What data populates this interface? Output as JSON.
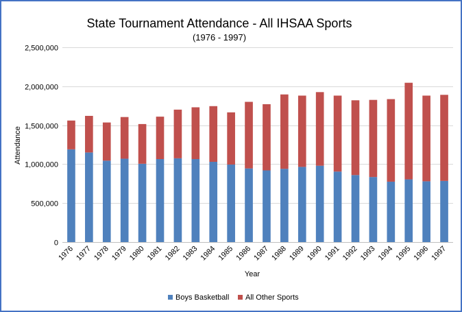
{
  "chart_data": {
    "type": "bar",
    "stacked": true,
    "title": "State Tournament Attendance - All IHSAA Sports",
    "subtitle": "(1976 - 1997)",
    "xlabel": "Year",
    "ylabel": "Attendance",
    "ylim": [
      0,
      2500000
    ],
    "yticks": [
      0,
      500000,
      1000000,
      1500000,
      2000000,
      2500000
    ],
    "ytick_labels": [
      "0",
      "500,000",
      "1,000,000",
      "1,500,000",
      "2,000,000",
      "2,500,000"
    ],
    "grid": true,
    "legend_position": "bottom",
    "categories": [
      "1976",
      "1977",
      "1978",
      "1979",
      "1980",
      "1981",
      "1982",
      "1983",
      "1984",
      "1985",
      "1986",
      "1987",
      "1988",
      "1989",
      "1990",
      "1991",
      "1992",
      "1993",
      "1994",
      "1995",
      "1996",
      "1997"
    ],
    "series": [
      {
        "name": "Boys Basketball",
        "color": "#4f81bd",
        "values": [
          1190000,
          1150000,
          1045000,
          1070000,
          1005000,
          1065000,
          1075000,
          1065000,
          1030000,
          995000,
          945000,
          920000,
          940000,
          965000,
          980000,
          905000,
          860000,
          835000,
          775000,
          805000,
          780000,
          785000
        ]
      },
      {
        "name": "All Other Sports",
        "color": "#c0504d",
        "values": [
          370000,
          470000,
          490000,
          535000,
          510000,
          545000,
          625000,
          665000,
          715000,
          670000,
          855000,
          850000,
          955000,
          915000,
          945000,
          975000,
          960000,
          990000,
          1060000,
          1240000,
          1100000,
          1105000
        ]
      }
    ]
  }
}
